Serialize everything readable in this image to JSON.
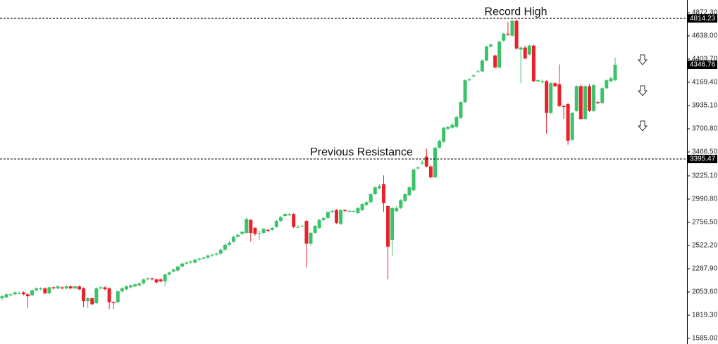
{
  "chart_data": {
    "type": "candlestick",
    "ylim": [
      1585,
      4872.3
    ],
    "yticks": [
      {
        "value": 4872.3,
        "label": "4872.30"
      },
      {
        "value": 4638,
        "label": "4638.00"
      },
      {
        "value": 4403.7,
        "label": "4403.70"
      },
      {
        "value": 4169.4,
        "label": "4169.40"
      },
      {
        "value": 3935.1,
        "label": "3935.10"
      },
      {
        "value": 3700.8,
        "label": "3700.80"
      },
      {
        "value": 3466.5,
        "label": "3466.50"
      },
      {
        "value": 3225.1,
        "label": "3225.10"
      },
      {
        "value": 2990.8,
        "label": "2990.80"
      },
      {
        "value": 2756.5,
        "label": "2756.50"
      },
      {
        "value": 2522.2,
        "label": "2522.20"
      },
      {
        "value": 2287.9,
        "label": "2287.90"
      },
      {
        "value": 2053.6,
        "label": "2053.60"
      },
      {
        "value": 1819.3,
        "label": "1819.30"
      },
      {
        "value": 1585,
        "label": "1585.00"
      }
    ],
    "up_color": "#3cc36a",
    "down_color": "#e8222a",
    "open": [
      1990,
      2000,
      2020,
      2030,
      2040,
      2050,
      2030,
      2020,
      2070,
      2080,
      2090,
      2040,
      2100,
      2090,
      2100,
      2090,
      2110,
      2090,
      2110,
      2090,
      1960,
      1990,
      1940,
      2090,
      2100,
      2090,
      1950,
      1950,
      2060,
      2080,
      2100,
      2110,
      2120,
      2140,
      2180,
      2190,
      2180,
      2180,
      2160,
      2230,
      2260,
      2270,
      2310,
      2340,
      2350,
      2350,
      2380,
      2390,
      2400,
      2420,
      2430,
      2440,
      2480,
      2530,
      2560,
      2610,
      2640,
      2650,
      2780,
      2700,
      2650,
      2650,
      2680,
      2680,
      2710,
      2770,
      2820,
      2830,
      2840,
      2710,
      2720,
      2770,
      2540,
      2650,
      2700,
      2780,
      2800,
      2860,
      2880,
      2740,
      2880,
      2870,
      2870,
      2850,
      2880,
      2930,
      2960,
      3040,
      3100,
      3140,
      2920,
      2580,
      2870,
      2900,
      2970,
      3030,
      3080,
      3300,
      3350,
      3420,
      3320,
      3210,
      3510,
      3570,
      3700,
      3710,
      3720,
      3810,
      3970,
      4190,
      4230,
      4280,
      4280,
      4390,
      4530,
      4440,
      4320,
      4590,
      4660,
      4640,
      4790,
      4500,
      4520,
      4450,
      4540,
      4180,
      4170,
      4180,
      3860,
      4160,
      4150,
      3930,
      3950,
      3590,
      3880,
      4130,
      3800,
      4130,
      3880,
      3970,
      3960,
      4110,
      4180,
      4190
    ],
    "high": [
      2020,
      2040,
      2040,
      2060,
      2060,
      2060,
      2040,
      2080,
      2100,
      2100,
      2100,
      2110,
      2110,
      2120,
      2110,
      2120,
      2120,
      2120,
      2120,
      2100,
      2000,
      2000,
      2100,
      2110,
      2110,
      2100,
      1960,
      2070,
      2100,
      2120,
      2130,
      2140,
      2150,
      2190,
      2200,
      2200,
      2190,
      2190,
      2240,
      2260,
      2290,
      2320,
      2350,
      2360,
      2370,
      2390,
      2400,
      2410,
      2430,
      2440,
      2450,
      2490,
      2540,
      2570,
      2620,
      2640,
      2670,
      2810,
      2790,
      2710,
      2670,
      2700,
      2690,
      2710,
      2780,
      2820,
      2850,
      2850,
      2850,
      2730,
      2730,
      2780,
      2660,
      2730,
      2790,
      2810,
      2870,
      2880,
      2890,
      2890,
      2890,
      2880,
      2880,
      2910,
      2950,
      2970,
      3050,
      3120,
      3140,
      3230,
      2930,
      2910,
      2920,
      2990,
      3050,
      3120,
      3300,
      3320,
      3380,
      3500,
      3330,
      3520,
      3590,
      3720,
      3730,
      3760,
      3830,
      3980,
      4200,
      4210,
      4250,
      4300,
      4400,
      4540,
      4560,
      4450,
      4590,
      4670,
      4780,
      4800,
      4800,
      4530,
      4540,
      4550,
      4550,
      4200,
      4200,
      4190,
      4170,
      4170,
      4350,
      3940,
      3960,
      3870,
      4140,
      4150,
      4140,
      4150,
      4150,
      3980,
      4120,
      4200,
      4230,
      4420
    ],
    "low": [
      1970,
      1990,
      2010,
      2020,
      2030,
      2020,
      1890,
      2010,
      2060,
      2070,
      2030,
      2030,
      2080,
      2080,
      2080,
      2080,
      2080,
      2080,
      2070,
      1900,
      1890,
      1920,
      1930,
      2080,
      2070,
      1880,
      1880,
      1940,
      2050,
      2070,
      2090,
      2100,
      2110,
      2130,
      2170,
      2170,
      2140,
      2150,
      2110,
      2220,
      2250,
      2260,
      2300,
      2330,
      2340,
      2340,
      2370,
      2380,
      2390,
      2410,
      2420,
      2430,
      2470,
      2520,
      2550,
      2600,
      2630,
      2640,
      2560,
      2620,
      2580,
      2640,
      2660,
      2670,
      2700,
      2760,
      2810,
      2820,
      2700,
      2700,
      2710,
      2300,
      2520,
      2640,
      2690,
      2770,
      2790,
      2850,
      2740,
      2730,
      2860,
      2860,
      2860,
      2840,
      2870,
      2920,
      2950,
      3030,
      3090,
      2860,
      2180,
      2420,
      2860,
      2890,
      2960,
      3020,
      3070,
      3290,
      3340,
      3310,
      3200,
      3200,
      3500,
      3560,
      3690,
      3700,
      3710,
      3800,
      3960,
      4180,
      4220,
      4270,
      4270,
      4380,
      4520,
      4310,
      4310,
      4580,
      4640,
      4630,
      4500,
      4160,
      4400,
      4440,
      4170,
      4170,
      4160,
      3650,
      3850,
      4120,
      3920,
      3800,
      3540,
      3580,
      3870,
      3790,
      3790,
      3870,
      3870,
      3950,
      3950,
      4100,
      4170,
      4180
    ],
    "close": [
      2010,
      2030,
      2030,
      2050,
      2040,
      2030,
      2010,
      2070,
      2090,
      2090,
      2040,
      2100,
      2090,
      2110,
      2090,
      2110,
      2090,
      2110,
      2080,
      1960,
      1990,
      1930,
      2090,
      2100,
      2080,
      1950,
      1940,
      2060,
      2090,
      2110,
      2120,
      2130,
      2140,
      2180,
      2190,
      2180,
      2150,
      2160,
      2230,
      2250,
      2280,
      2310,
      2340,
      2350,
      2360,
      2380,
      2390,
      2400,
      2420,
      2430,
      2440,
      2480,
      2530,
      2550,
      2610,
      2630,
      2660,
      2790,
      2650,
      2640,
      2650,
      2690,
      2670,
      2700,
      2770,
      2810,
      2840,
      2840,
      2710,
      2710,
      2720,
      2540,
      2650,
      2720,
      2780,
      2800,
      2860,
      2870,
      2750,
      2880,
      2870,
      2870,
      2870,
      2900,
      2940,
      2960,
      3040,
      3110,
      3120,
      2950,
      2510,
      2900,
      2900,
      2980,
      3040,
      3110,
      3290,
      3310,
      3360,
      3320,
      3210,
      3510,
      3580,
      3710,
      3720,
      3740,
      3820,
      3970,
      4190,
      4200,
      4240,
      4280,
      4390,
      4530,
      4550,
      4320,
      4580,
      4660,
      4650,
      4790,
      4510,
      4520,
      4410,
      4540,
      4180,
      4190,
      4180,
      3860,
      4160,
      4130,
      3930,
      3920,
      3580,
      3860,
      4130,
      3800,
      4130,
      3880,
      4140,
      3960,
      4110,
      4190,
      4210,
      4346.76
    ],
    "levels": [
      {
        "value": 4814.23,
        "label": "4814.23",
        "text": "Record High"
      },
      {
        "value": 3395.47,
        "label": "3395.47",
        "text": "Previous Resistance"
      }
    ],
    "last_price": {
      "value": 4346.76,
      "label": "4346.76"
    }
  }
}
